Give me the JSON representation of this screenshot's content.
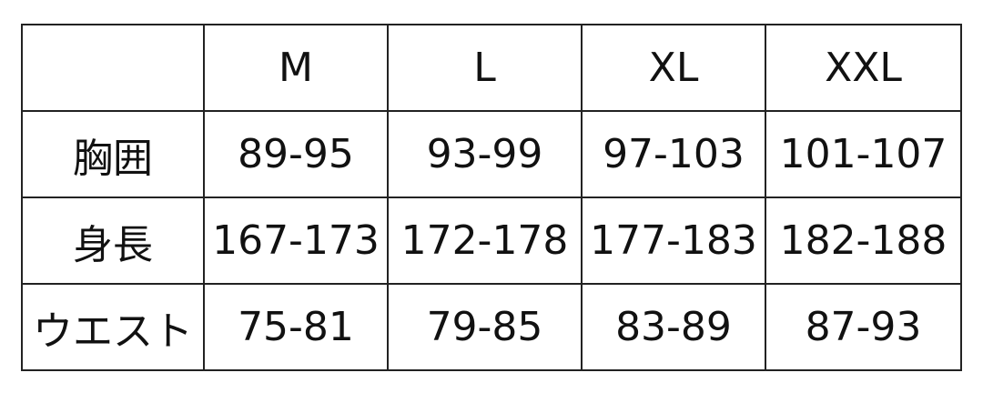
{
  "colors": {
    "background": "#ffffff",
    "border": "#222222",
    "text": "#111111"
  },
  "chart_data": {
    "type": "table",
    "columns": [
      "",
      "M",
      "L",
      "XL",
      "XXL"
    ],
    "rows": [
      [
        "胸囲",
        "89-95",
        "93-99",
        "97-103",
        "101-107"
      ],
      [
        "身長",
        "167-173",
        "172-178",
        "177-183",
        "182-188"
      ],
      [
        "ウエスト",
        "75-81",
        "79-85",
        "83-89",
        "87-93"
      ]
    ],
    "row_label_meanings": {
      "胸囲": "chest circumference (cm)",
      "身長": "height (cm)",
      "ウエスト": "waist (cm)"
    },
    "grid": true,
    "title": ""
  }
}
